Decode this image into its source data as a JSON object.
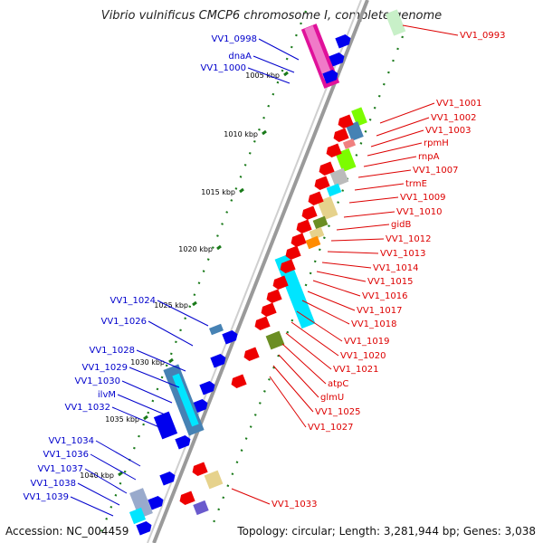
{
  "title": "Vibrio vulnificus CMCP6 chromosome I, complete genome",
  "footer": {
    "accession": "Accession: NC_004459",
    "topology": "Topology: circular; Length: 3,281,944 bp; Genes: 3,038"
  },
  "colors": {
    "plus_label": "#0000cc",
    "minus_label": "#dd0000",
    "backbone": "#9a9a9a",
    "ticks": "#1a7a1a",
    "magenta": "#e0119a",
    "blue": "#0000ee",
    "red": "#ee0000",
    "cyan": "#00e5ff",
    "steelblue": "#4682b4",
    "olive": "#6b8e23",
    "khaki": "#e6d28c",
    "orange": "#ff8c00",
    "green": "#7cfc00",
    "gray": "#bbbbbb",
    "pink": "#f08080",
    "slate": "#6a5acd"
  },
  "ticks": [
    "1005 kbp",
    "1010 kbp",
    "1015 kbp",
    "1020 kbp",
    "1025 kbp",
    "1030 kbp",
    "1035 kbp",
    "1040 kbp"
  ],
  "plus_labels": [
    "VV1_0998",
    "dnaA",
    "VV1_1000",
    "VV1_1024",
    "VV1_1026",
    "VV1_1028",
    "VV1_1029",
    "VV1_1030",
    "ilvM",
    "VV1_1032",
    "VV1_1034",
    "VV1_1036",
    "VV1_1037",
    "VV1_1038",
    "VV1_1039"
  ],
  "minus_labels": [
    "VV1_0993",
    "VV1_1001",
    "VV1_1002",
    "VV1_1003",
    "rpmH",
    "rnpA",
    "VV1_1007",
    "trmE",
    "VV1_1009",
    "VV1_1010",
    "gidB",
    "VV1_1012",
    "VV1_1013",
    "VV1_1014",
    "VV1_1015",
    "VV1_1016",
    "VV1_1017",
    "VV1_1018",
    "VV1_1019",
    "VV1_1020",
    "VV1_1021",
    "atpC",
    "glmU",
    "VV1_1025",
    "VV1_1027",
    "VV1_1033"
  ]
}
